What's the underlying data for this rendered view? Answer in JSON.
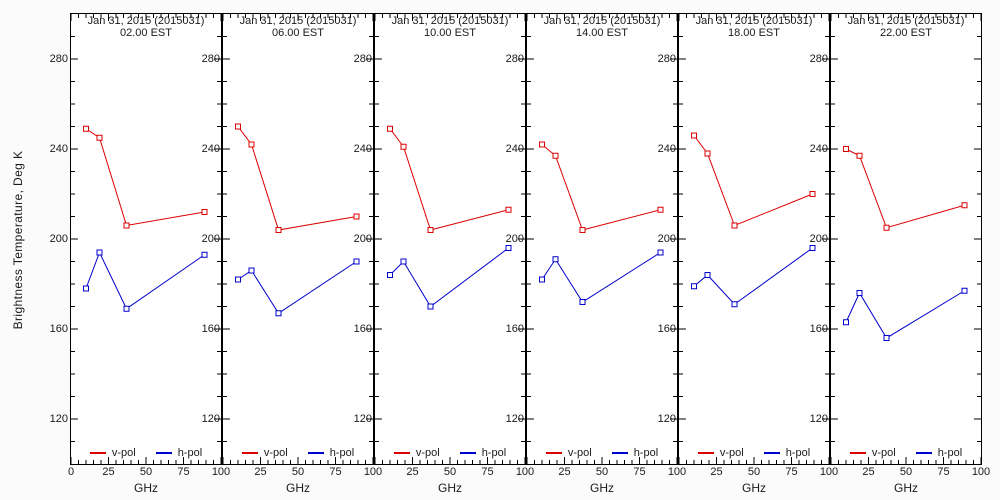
{
  "figure": {
    "y_axis_title": "Brightness Temperature, Deg K",
    "x_axis_unit": "GHz",
    "colors": {
      "v_pol": "#dd0000",
      "h_pol": "#0000cc",
      "axis": "#000000",
      "text": "#1a1a1a",
      "panel_bg": "#ffffff",
      "page_bg": "#fbfbfb"
    }
  },
  "chart_data": {
    "type": "line",
    "title": "Jan 31, 2015 (2015031)",
    "xlabel": "GHz",
    "ylabel": "Brightness Temperature, Deg K",
    "x": [
      10,
      19,
      37,
      89
    ],
    "xlim": [
      0,
      100
    ],
    "ylim": [
      100,
      300
    ],
    "x_major_ticks": [
      0,
      25,
      50,
      75,
      100
    ],
    "x_minor_step": 5,
    "y_major_ticks": [
      120,
      160,
      200,
      240,
      280
    ],
    "y_minor_step": 10,
    "grid": false,
    "legend_position": "bottom-inside",
    "legend": [
      {
        "name": "v-pol",
        "color": "#dd0000"
      },
      {
        "name": "h-pol",
        "color": "#0000cc"
      }
    ],
    "panels": [
      {
        "time": "02.00 EST",
        "series": [
          {
            "name": "v-pol",
            "values": [
              249,
              245,
              206,
              212
            ]
          },
          {
            "name": "h-pol",
            "values": [
              178,
              194,
              169,
              193
            ]
          }
        ]
      },
      {
        "time": "06.00 EST",
        "series": [
          {
            "name": "v-pol",
            "values": [
              250,
              242,
              204,
              210
            ]
          },
          {
            "name": "h-pol",
            "values": [
              182,
              186,
              167,
              190
            ]
          }
        ]
      },
      {
        "time": "10.00 EST",
        "series": [
          {
            "name": "v-pol",
            "values": [
              249,
              241,
              204,
              213
            ]
          },
          {
            "name": "h-pol",
            "values": [
              184,
              190,
              170,
              196
            ]
          }
        ]
      },
      {
        "time": "14.00 EST",
        "series": [
          {
            "name": "v-pol",
            "values": [
              242,
              237,
              204,
              213
            ]
          },
          {
            "name": "h-pol",
            "values": [
              182,
              191,
              172,
              194
            ]
          }
        ]
      },
      {
        "time": "18.00 EST",
        "series": [
          {
            "name": "v-pol",
            "values": [
              246,
              238,
              206,
              220
            ]
          },
          {
            "name": "h-pol",
            "values": [
              179,
              184,
              171,
              196
            ]
          }
        ]
      },
      {
        "time": "22.00 EST",
        "series": [
          {
            "name": "v-pol",
            "values": [
              240,
              237,
              205,
              215
            ]
          },
          {
            "name": "h-pol",
            "values": [
              163,
              176,
              156,
              177
            ]
          }
        ]
      }
    ]
  }
}
